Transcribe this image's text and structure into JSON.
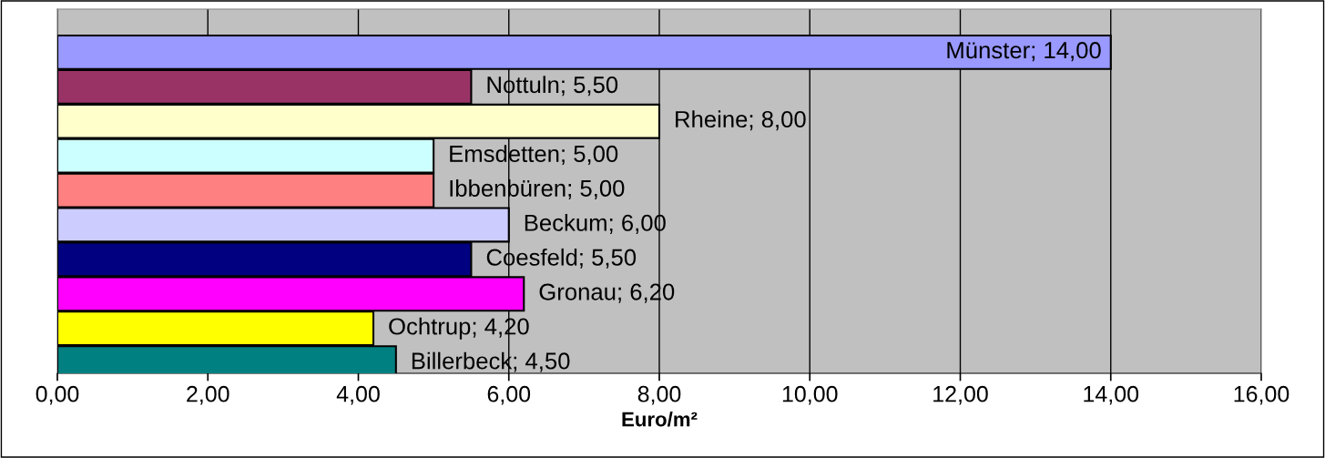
{
  "chart_data": {
    "type": "bar",
    "orientation": "horizontal",
    "xlabel": "Euro/m²",
    "categories": [
      null,
      null,
      null,
      null,
      null,
      null,
      null,
      null,
      null,
      null
    ],
    "values": [
      14.0,
      5.5,
      8.0,
      5.0,
      5.0,
      6.0,
      5.5,
      6.2,
      4.2,
      4.5
    ],
    "colors": [
      "#9999ff",
      "#993366",
      "#ffffcc",
      "#ccffff",
      "#ff8080",
      "#ccccff",
      "#000080",
      "#ff00ff",
      "#ffff00",
      "#008080"
    ],
    "value_labels": [
      "Münster; 14,00",
      "Nottuln; 5,50",
      "Rheine; 8,00",
      "Emsdetten; 5,00",
      "Ibbenbüren; 5,00",
      "Beckum; 6,00",
      "Coesfeld; 5,50",
      "Gronau; 6,20",
      "Ochtrup; 4,20",
      "Billerbeck; 4,50"
    ],
    "xlim": [
      0,
      16
    ],
    "xticks": [
      {
        "value": 0,
        "label": "0,00"
      },
      {
        "value": 2,
        "label": "2,00"
      },
      {
        "value": 4,
        "label": "4,00"
      },
      {
        "value": 6,
        "label": "6,00"
      },
      {
        "value": 8,
        "label": "8,00"
      },
      {
        "value": 10,
        "label": "10,00"
      },
      {
        "value": 12,
        "label": "12,00"
      },
      {
        "value": 14,
        "label": "14,00"
      },
      {
        "value": 16,
        "label": "16,00"
      }
    ],
    "tick_labels": "x",
    "grid": "x",
    "legend": false
  }
}
